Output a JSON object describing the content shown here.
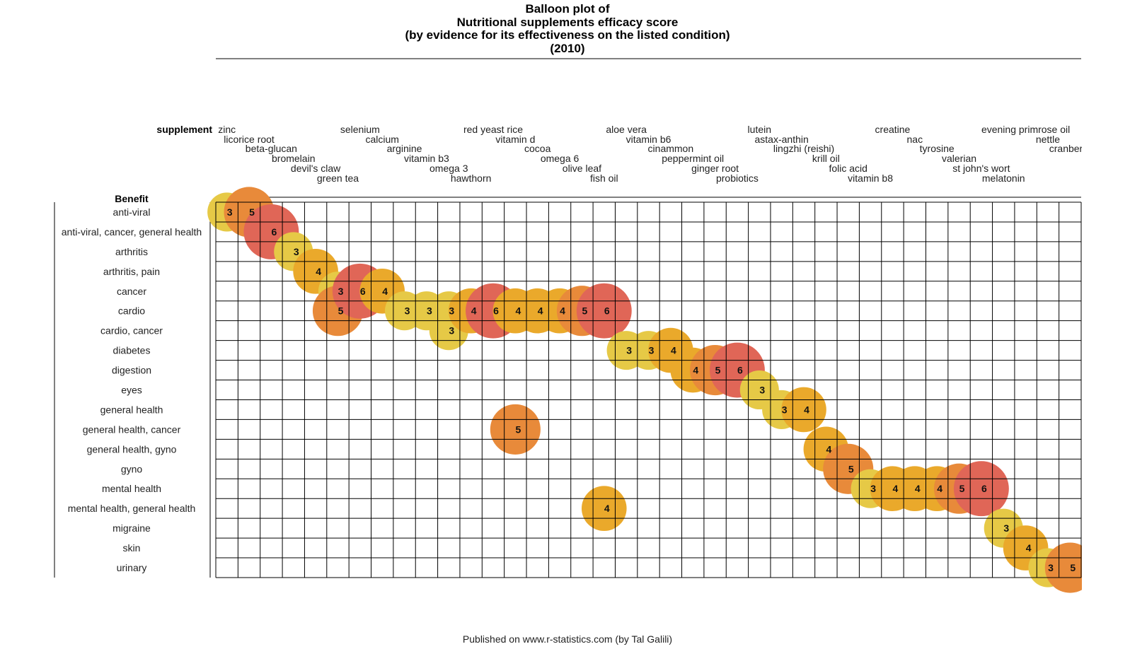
{
  "chart_data": {
    "type": "balloon",
    "title": [
      "Balloon plot of",
      "Nutritional supplements efficacy score",
      "(by evidence for its effectiveness on the listed condition)",
      "(2010)"
    ],
    "x_header": "supplement",
    "y_header": "Benefit",
    "footer": "Published on www.r-statistics.com (by Tal Galili)",
    "supplements": [
      "zinc",
      "licorice root",
      "beta-glucan",
      "bromelain",
      "devil's claw",
      "green tea",
      "selenium",
      "calcium",
      "arginine",
      "vitamin b3",
      "omega 3",
      "hawthorn",
      "red yeast rice",
      "vitamin d",
      "cocoa",
      "omega 6",
      "olive leaf",
      "fish oil",
      "aloe vera",
      "vitamin b6",
      "cinammon",
      "peppermint oil",
      "ginger root",
      "probiotics",
      "lutein",
      "astax-anthin",
      "lingzhi (reishi)",
      "krill oil",
      "folic acid",
      "vitamin b8",
      "creatine",
      "nac",
      "tyrosine",
      "valerian",
      "st john's wort",
      "melatonin",
      "evening primrose oil",
      "nettle",
      "cranberry"
    ],
    "benefits": [
      "anti-viral",
      "anti-viral, cancer, general health",
      "arthritis",
      "arthritis, pain",
      "cancer",
      "cardio",
      "cardio, cancer",
      "diabetes",
      "digestion",
      "eyes",
      "general health",
      "general health, cancer",
      "general health, gyno",
      "gyno",
      "mental health",
      "mental health, general health",
      "migraine",
      "skin",
      "urinary"
    ],
    "color_scale": {
      "3": "#e6c946",
      "4": "#eaa92b",
      "5": "#e88a3a",
      "6": "#e06657"
    },
    "points": [
      {
        "supplement": "zinc",
        "benefit": "anti-viral",
        "score": 3
      },
      {
        "supplement": "licorice root",
        "benefit": "anti-viral",
        "score": 5
      },
      {
        "supplement": "beta-glucan",
        "benefit": "anti-viral, cancer, general health",
        "score": 6
      },
      {
        "supplement": "bromelain",
        "benefit": "arthritis",
        "score": 3
      },
      {
        "supplement": "devil's claw",
        "benefit": "arthritis, pain",
        "score": 4
      },
      {
        "supplement": "green tea",
        "benefit": "cancer",
        "score": 3
      },
      {
        "supplement": "green tea",
        "benefit": "cardio",
        "score": 5
      },
      {
        "supplement": "selenium",
        "benefit": "cancer",
        "score": 6
      },
      {
        "supplement": "calcium",
        "benefit": "cancer",
        "score": 4
      },
      {
        "supplement": "arginine",
        "benefit": "cardio",
        "score": 3
      },
      {
        "supplement": "vitamin b3",
        "benefit": "cardio",
        "score": 3
      },
      {
        "supplement": "omega 3",
        "benefit": "cardio",
        "score": 3
      },
      {
        "supplement": "omega 3",
        "benefit": "cardio, cancer",
        "score": 3
      },
      {
        "supplement": "hawthorn",
        "benefit": "cardio",
        "score": 4
      },
      {
        "supplement": "red yeast rice",
        "benefit": "cardio",
        "score": 6
      },
      {
        "supplement": "vitamin d",
        "benefit": "cardio",
        "score": 4
      },
      {
        "supplement": "vitamin d",
        "benefit": "general health, cancer",
        "score": 5
      },
      {
        "supplement": "cocoa",
        "benefit": "cardio",
        "score": 4
      },
      {
        "supplement": "omega 6",
        "benefit": "cardio",
        "score": 4
      },
      {
        "supplement": "olive leaf",
        "benefit": "cardio",
        "score": 5
      },
      {
        "supplement": "fish oil",
        "benefit": "cardio",
        "score": 6
      },
      {
        "supplement": "fish oil",
        "benefit": "mental health, general health",
        "score": 4
      },
      {
        "supplement": "aloe vera",
        "benefit": "diabetes",
        "score": 3
      },
      {
        "supplement": "vitamin b6",
        "benefit": "diabetes",
        "score": 3
      },
      {
        "supplement": "cinammon",
        "benefit": "diabetes",
        "score": 4
      },
      {
        "supplement": "peppermint oil",
        "benefit": "digestion",
        "score": 4
      },
      {
        "supplement": "ginger root",
        "benefit": "digestion",
        "score": 5
      },
      {
        "supplement": "probiotics",
        "benefit": "digestion",
        "score": 6
      },
      {
        "supplement": "lutein",
        "benefit": "eyes",
        "score": 3
      },
      {
        "supplement": "astax-anthin",
        "benefit": "general health",
        "score": 3
      },
      {
        "supplement": "lingzhi (reishi)",
        "benefit": "general health",
        "score": 4
      },
      {
        "supplement": "krill oil",
        "benefit": "general health, gyno",
        "score": 4
      },
      {
        "supplement": "folic acid",
        "benefit": "gyno",
        "score": 5
      },
      {
        "supplement": "vitamin b8",
        "benefit": "mental health",
        "score": 3
      },
      {
        "supplement": "creatine",
        "benefit": "mental health",
        "score": 4
      },
      {
        "supplement": "nac",
        "benefit": "mental health",
        "score": 4
      },
      {
        "supplement": "tyrosine",
        "benefit": "mental health",
        "score": 4
      },
      {
        "supplement": "valerian",
        "benefit": "mental health",
        "score": 5
      },
      {
        "supplement": "st john's wort",
        "benefit": "mental health",
        "score": 6
      },
      {
        "supplement": "melatonin",
        "benefit": "migraine",
        "score": 3
      },
      {
        "supplement": "evening primrose oil",
        "benefit": "skin",
        "score": 4
      },
      {
        "supplement": "nettle",
        "benefit": "urinary",
        "score": 3
      },
      {
        "supplement": "cranberry",
        "benefit": "urinary",
        "score": 5
      }
    ]
  }
}
